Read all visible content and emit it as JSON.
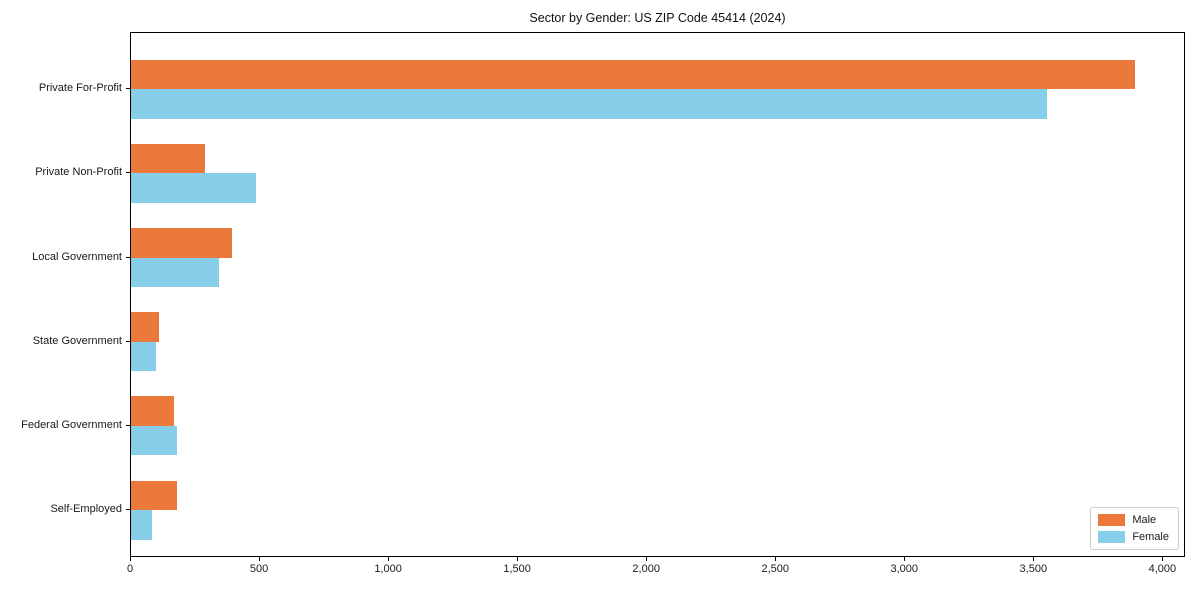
{
  "chart_data": {
    "type": "bar",
    "orientation": "horizontal",
    "title": "Sector by Gender: US ZIP Code 45414 (2024)",
    "xlabel": "",
    "ylabel": "",
    "categories": [
      "Private For-Profit",
      "Private Non-Profit",
      "Local Government",
      "State Government",
      "Federal Government",
      "Self-Employed"
    ],
    "series": [
      {
        "name": "Male",
        "color": "#EC793C",
        "values": [
          3890,
          285,
          390,
          110,
          165,
          180
        ]
      },
      {
        "name": "Female",
        "color": "#87CEEB",
        "values": [
          3550,
          485,
          340,
          95,
          180,
          80
        ]
      }
    ],
    "xlim": [
      0,
      4080
    ],
    "x_ticks": [
      0,
      500,
      1000,
      1500,
      2000,
      2500,
      3000,
      3500,
      4000
    ],
    "x_tick_labels": [
      "0",
      "500",
      "1,000",
      "1,500",
      "2,000",
      "2,500",
      "3,000",
      "3,500",
      "4,000"
    ],
    "grid": false,
    "legend": {
      "position": "lower right"
    }
  }
}
